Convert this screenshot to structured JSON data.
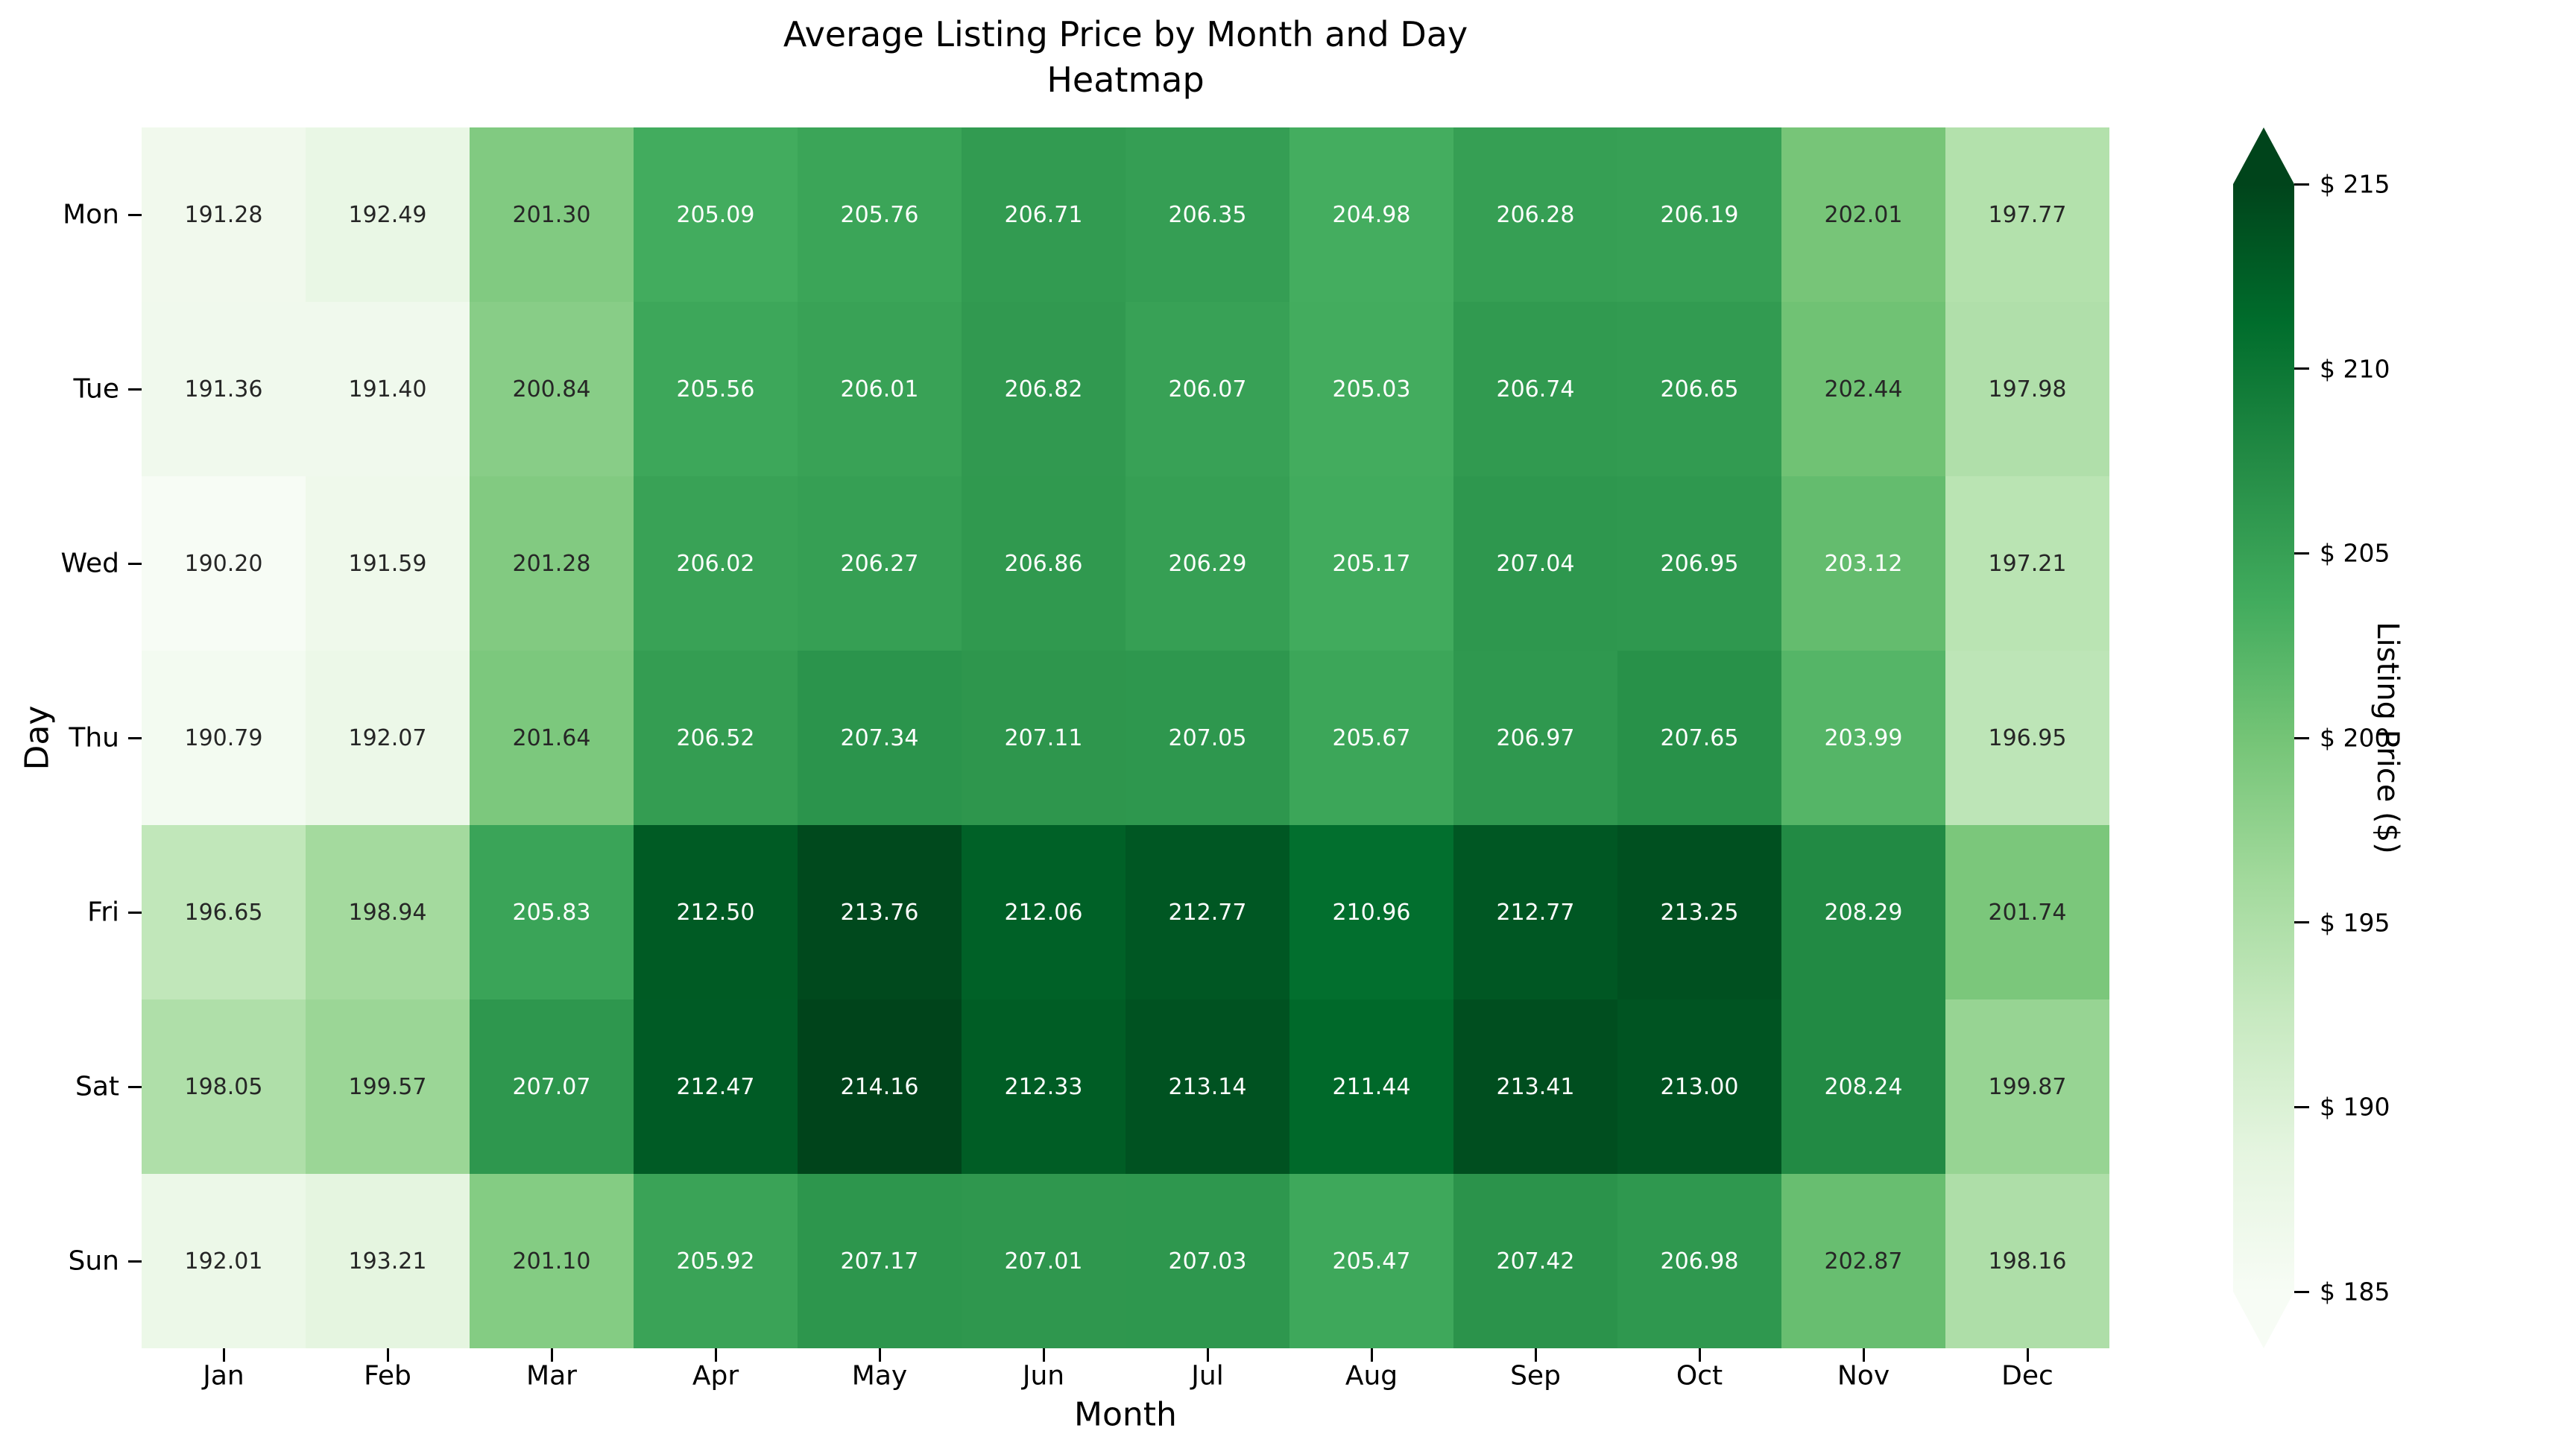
{
  "chart_data": {
    "type": "heatmap",
    "title_lines": [
      "Average Listing Price by Month and Day",
      "Heatmap"
    ],
    "xlabel": "Month",
    "ylabel": "Day",
    "x_categories": [
      "Jan",
      "Feb",
      "Mar",
      "Apr",
      "May",
      "Jun",
      "Jul",
      "Aug",
      "Sep",
      "Oct",
      "Nov",
      "Dec"
    ],
    "y_categories": [
      "Mon",
      "Tue",
      "Wed",
      "Thu",
      "Fri",
      "Sat",
      "Sun"
    ],
    "values": [
      [
        191.28,
        192.49,
        201.3,
        205.09,
        205.76,
        206.71,
        206.35,
        204.98,
        206.28,
        206.19,
        202.01,
        197.77
      ],
      [
        191.36,
        191.4,
        200.84,
        205.56,
        206.01,
        206.82,
        206.07,
        205.03,
        206.74,
        206.65,
        202.44,
        197.98
      ],
      [
        190.2,
        191.59,
        201.28,
        206.02,
        206.27,
        206.86,
        206.29,
        205.17,
        207.04,
        206.95,
        203.12,
        197.21
      ],
      [
        190.79,
        192.07,
        201.64,
        206.52,
        207.34,
        207.11,
        207.05,
        205.67,
        206.97,
        207.65,
        203.99,
        196.95
      ],
      [
        196.65,
        198.94,
        205.83,
        212.5,
        213.76,
        212.06,
        212.77,
        210.96,
        212.77,
        213.25,
        208.29,
        201.74
      ],
      [
        198.05,
        199.57,
        207.07,
        212.47,
        214.16,
        212.33,
        213.14,
        211.44,
        213.41,
        213.0,
        208.24,
        199.87
      ],
      [
        192.01,
        193.21,
        201.1,
        205.92,
        207.17,
        207.01,
        207.03,
        205.47,
        207.42,
        206.98,
        202.87,
        198.16
      ]
    ],
    "value_decimals": 2,
    "colormap_name": "Greens",
    "colormap_stops": [
      "#f7fcf5",
      "#e5f5e0",
      "#c7e9c0",
      "#a1d99b",
      "#74c476",
      "#41ab5d",
      "#238b45",
      "#006d2c",
      "#00441b"
    ],
    "annotation": {
      "dark_color": "#262626",
      "light_color": "#ffffff",
      "light_threshold": 203.0
    },
    "colorbar": {
      "label": "Listing Price ($)",
      "range": [
        185,
        215
      ],
      "ticks": [
        {
          "value": 215,
          "label": "$ 215"
        },
        {
          "value": 210,
          "label": "$ 210"
        },
        {
          "value": 205,
          "label": "$ 205"
        },
        {
          "value": 200,
          "label": "$ 200"
        },
        {
          "value": 195,
          "label": "$ 195"
        },
        {
          "value": 190,
          "label": "$ 190"
        },
        {
          "value": 185,
          "label": "$ 185"
        }
      ],
      "extend": "both"
    }
  }
}
